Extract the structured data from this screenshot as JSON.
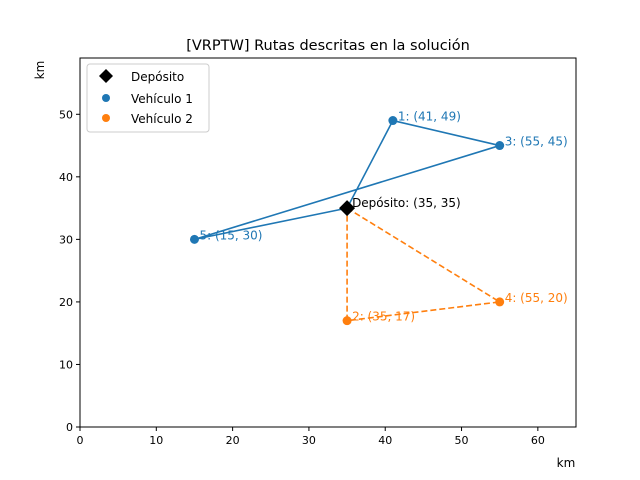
{
  "chart_data": {
    "type": "line",
    "title": "[VRPTW] Rutas descritas en la solución",
    "xlabel": "km",
    "ylabel": "km",
    "xlim": [
      0,
      65
    ],
    "ylim": [
      0,
      59
    ],
    "xticks": [
      0,
      10,
      20,
      30,
      40,
      50,
      60
    ],
    "yticks": [
      0,
      10,
      20,
      30,
      40,
      50
    ],
    "grid": false,
    "legend_position": "top-left",
    "depot": {
      "name": "Depósito",
      "label": "Depósito: (35, 35)",
      "x": 35,
      "y": 35,
      "color": "#000000",
      "marker": "diamond"
    },
    "series": [
      {
        "name": "Vehículo 1",
        "color": "#1f77b4",
        "linestyle": "solid",
        "route": [
          {
            "x": 35,
            "y": 35
          },
          {
            "x": 41,
            "y": 49
          },
          {
            "x": 55,
            "y": 45
          },
          {
            "x": 15,
            "y": 30
          },
          {
            "x": 35,
            "y": 35
          }
        ],
        "points": [
          {
            "x": 41,
            "y": 49,
            "label": "1: (41, 49)"
          },
          {
            "x": 55,
            "y": 45,
            "label": "3: (55, 45)"
          },
          {
            "x": 15,
            "y": 30,
            "label": "5: (15, 30)"
          }
        ]
      },
      {
        "name": "Vehículo 2",
        "color": "#ff7f0e",
        "linestyle": "dashed",
        "route": [
          {
            "x": 35,
            "y": 35
          },
          {
            "x": 55,
            "y": 20
          },
          {
            "x": 35,
            "y": 17
          },
          {
            "x": 35,
            "y": 35
          }
        ],
        "points": [
          {
            "x": 55,
            "y": 20,
            "label": "4: (55, 20)"
          },
          {
            "x": 35,
            "y": 17,
            "label": "2: (35, 17)"
          }
        ]
      }
    ]
  }
}
